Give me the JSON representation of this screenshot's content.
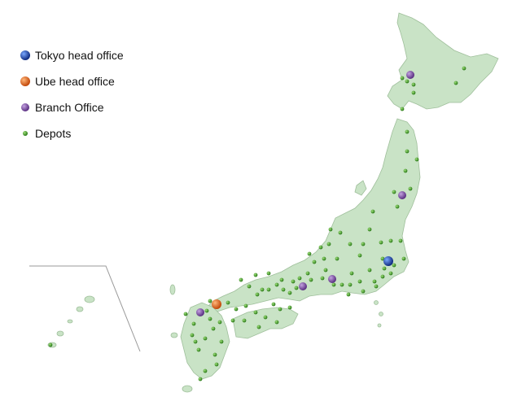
{
  "legend": {
    "items": [
      {
        "label": "Tokyo head office",
        "marker": "blue-sphere-icon",
        "color": "#1a3f9e"
      },
      {
        "label": "Ube head office",
        "marker": "orange-sphere-icon",
        "color": "#e06a1a"
      },
      {
        "label": "Branch Office",
        "marker": "purple-sphere-icon",
        "color": "#7b4fa0"
      },
      {
        "label": "Depots",
        "marker": "green-dot-icon",
        "color": "#3a9a28"
      }
    ]
  },
  "colors": {
    "land": "#c9e3c6",
    "coast": "#9fbf9b",
    "depot": "#3a9a28",
    "tokyo": "#1a3f9e",
    "ube": "#e06a1a",
    "branch": "#7b4fa0"
  }
}
